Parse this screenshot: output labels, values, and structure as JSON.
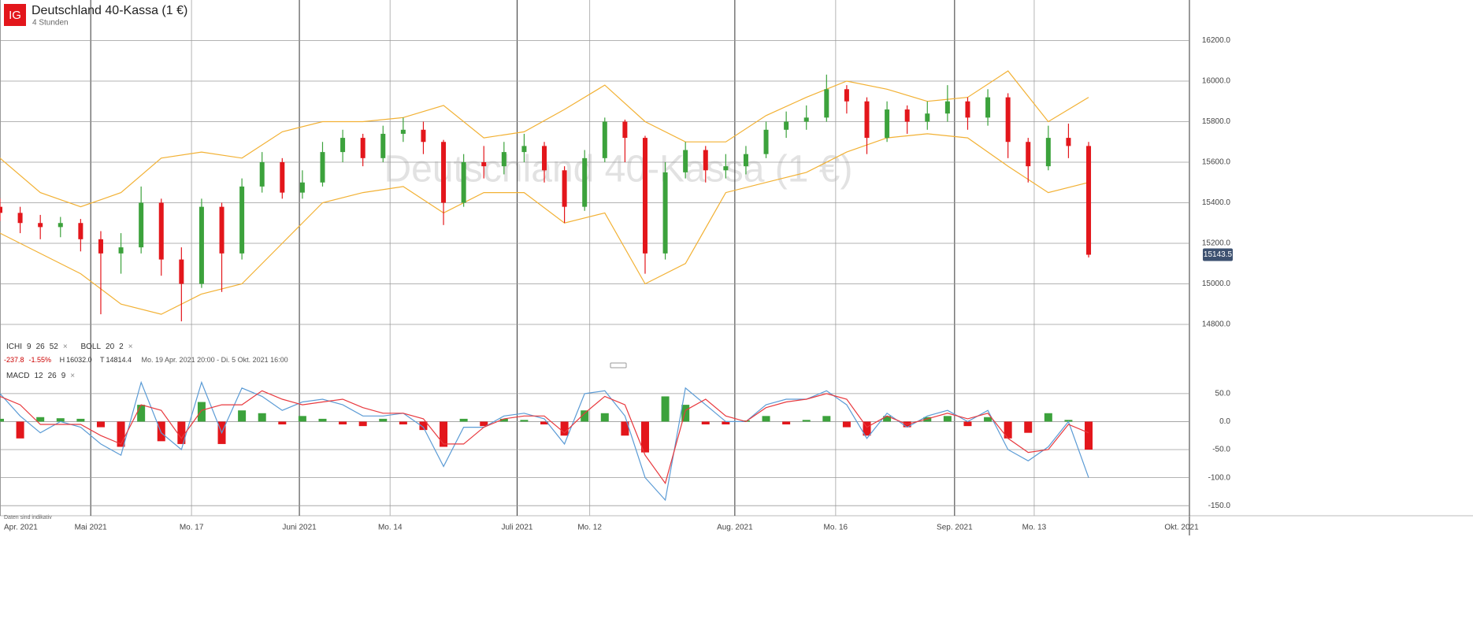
{
  "header": {
    "logo": "IG",
    "title": "Deutschland 40-Kassa (1 €)",
    "interval": "4 Stunden"
  },
  "legend": {
    "close_icon": "×",
    "ichimoku": {
      "label": "ICHI",
      "params": [
        9,
        26,
        52
      ]
    },
    "bollinger": {
      "label": "BOLL",
      "params": [
        20,
        2
      ]
    },
    "macd": {
      "label": "MACD",
      "params": [
        12,
        26,
        9
      ]
    }
  },
  "stats": {
    "change": "-237.8",
    "change_pct": "-1.55%",
    "high_label": "H",
    "high": "16032.0",
    "low_label": "T",
    "low": "14814.4",
    "range": "Mo. 19 Apr. 2021 20:00 - Di. 5 Okt. 2021 16:00"
  },
  "footnote": "Daten sind indikativ",
  "chart_data": [
    {
      "type": "candlestick",
      "x": [
        -9,
        -7,
        -5,
        -3,
        -1,
        1,
        3,
        5,
        7,
        9,
        11,
        13,
        15,
        17,
        19,
        21,
        23,
        25,
        27,
        29,
        31,
        33,
        35,
        37,
        39,
        41,
        43,
        45,
        47,
        49,
        51,
        53,
        55,
        57,
        59,
        61,
        63,
        65,
        67,
        69,
        71,
        73,
        75,
        77,
        79,
        81,
        83,
        85,
        87,
        89,
        91,
        93,
        95,
        97,
        99
      ],
      "open": [
        15380,
        15350,
        15300,
        15280,
        15300,
        15220,
        15150,
        15180,
        15400,
        15120,
        15000,
        15380,
        15150,
        15480,
        15600,
        15450,
        15500,
        15650,
        15720,
        15620,
        15740,
        15760,
        15700,
        15400,
        15600,
        15580,
        15650,
        15680,
        15560,
        15380,
        15620,
        15800,
        15720,
        15150,
        15550,
        15660,
        15560,
        15580,
        15640,
        15760,
        15800,
        15820,
        15960,
        15900,
        15720,
        15860,
        15800,
        15840,
        15900,
        15820,
        15920,
        15700,
        15580,
        15720,
        15680
      ],
      "high": [
        15420,
        15380,
        15340,
        15330,
        15320,
        15260,
        15250,
        15480,
        15420,
        15180,
        15420,
        15400,
        15520,
        15650,
        15620,
        15560,
        15700,
        15760,
        15740,
        15780,
        15820,
        15800,
        15710,
        15640,
        15680,
        15700,
        15740,
        15700,
        15580,
        15660,
        15820,
        15810,
        15730,
        15600,
        15700,
        15680,
        15640,
        15680,
        15800,
        15850,
        15880,
        16032,
        15980,
        15920,
        15900,
        15880,
        15900,
        15980,
        15920,
        15960,
        15940,
        15720,
        15780,
        15790,
        15700
      ],
      "low": [
        15310,
        15250,
        15220,
        15230,
        15160,
        14850,
        15050,
        15150,
        15040,
        14815,
        14980,
        14960,
        15120,
        15450,
        15420,
        15420,
        15480,
        15600,
        15580,
        15600,
        15700,
        15640,
        15290,
        15380,
        15520,
        15540,
        15600,
        15500,
        15300,
        15360,
        15600,
        15600,
        15050,
        15120,
        15520,
        15500,
        15520,
        15540,
        15620,
        15720,
        15760,
        15800,
        15840,
        15640,
        15700,
        15740,
        15760,
        15800,
        15760,
        15780,
        15620,
        15500,
        15560,
        15620,
        15130
      ],
      "close": [
        15350,
        15300,
        15280,
        15300,
        15220,
        15150,
        15180,
        15400,
        15120,
        15000,
        15380,
        15150,
        15480,
        15600,
        15450,
        15500,
        15650,
        15720,
        15620,
        15740,
        15760,
        15700,
        15400,
        15600,
        15580,
        15650,
        15680,
        15560,
        15380,
        15620,
        15800,
        15720,
        15150,
        15550,
        15660,
        15560,
        15580,
        15640,
        15760,
        15800,
        15820,
        15960,
        15900,
        15720,
        15860,
        15800,
        15840,
        15900,
        15820,
        15920,
        15700,
        15580,
        15720,
        15680,
        15143.5
      ],
      "up_color": "#3ca23c",
      "down_color": "#e3161b",
      "last_color": "#3d5170",
      "xlim": [
        -9,
        109
      ],
      "xticks": [
        {
          "value": -9,
          "label": "Apr. 2021"
        },
        {
          "value": 0,
          "label": "Mai 2021"
        },
        {
          "value": 10,
          "label": "Mo. 17"
        },
        {
          "value": 20.7,
          "label": "Juni 2021"
        },
        {
          "value": 29.7,
          "label": "Mo. 14"
        },
        {
          "value": 42.3,
          "label": "Juli 2021"
        },
        {
          "value": 49.5,
          "label": "Mo. 12"
        },
        {
          "value": 63.9,
          "label": "Aug. 2021"
        },
        {
          "value": 73.9,
          "label": "Mo. 16"
        },
        {
          "value": 85.7,
          "label": "Sep. 2021"
        },
        {
          "value": 93.6,
          "label": "Mo. 13"
        },
        {
          "value": 109,
          "label": "Okt. 2021"
        }
      ],
      "ylim": [
        14730,
        16400
      ],
      "yticks": [
        {
          "value": 14800,
          "label": "14800.0"
        },
        {
          "value": 15000,
          "label": "15000.0"
        },
        {
          "value": 15200,
          "label": "15200.0"
        },
        {
          "value": 15400,
          "label": "15400.0"
        },
        {
          "value": 15600,
          "label": "15600.0"
        },
        {
          "value": 15800,
          "label": "15800.0"
        },
        {
          "value": 16000,
          "label": "16000.0"
        },
        {
          "value": 16200,
          "label": "16200.0"
        }
      ],
      "bollinger": {
        "color": "#f2b134",
        "x": [
          -9,
          -5,
          -1,
          3,
          7,
          11,
          15,
          19,
          23,
          27,
          31,
          35,
          39,
          43,
          47,
          51,
          55,
          59,
          63,
          67,
          71,
          75,
          79,
          83,
          87,
          91,
          95,
          99
        ],
        "upper": [
          15620,
          15450,
          15380,
          15450,
          15620,
          15650,
          15620,
          15750,
          15800,
          15800,
          15820,
          15880,
          15720,
          15750,
          15860,
          15980,
          15800,
          15700,
          15700,
          15830,
          15920,
          16000,
          15960,
          15900,
          15920,
          16050,
          15800,
          15920
        ],
        "lower": [
          15250,
          15150,
          15050,
          14900,
          14850,
          14950,
          15000,
          15200,
          15400,
          15450,
          15480,
          15350,
          15450,
          15450,
          15300,
          15350,
          15000,
          15100,
          15450,
          15500,
          15550,
          15650,
          15720,
          15740,
          15720,
          15580,
          15450,
          15500
        ]
      }
    },
    {
      "type": "macd",
      "x": [
        -9,
        -7,
        -5,
        -3,
        -1,
        1,
        3,
        5,
        7,
        9,
        11,
        13,
        15,
        17,
        19,
        21,
        23,
        25,
        27,
        29,
        31,
        33,
        35,
        37,
        39,
        41,
        43,
        45,
        47,
        49,
        51,
        53,
        55,
        57,
        59,
        61,
        63,
        65,
        67,
        69,
        71,
        73,
        75,
        77,
        79,
        81,
        83,
        85,
        87,
        89,
        91,
        93,
        95,
        97,
        99
      ],
      "histogram": [
        5,
        -30,
        8,
        6,
        5,
        -10,
        -45,
        30,
        -35,
        -40,
        35,
        -40,
        20,
        15,
        -5,
        10,
        5,
        -5,
        -8,
        5,
        -5,
        -15,
        -45,
        5,
        -8,
        5,
        3,
        -5,
        -25,
        20,
        15,
        -25,
        -55,
        45,
        30,
        -5,
        -5,
        2,
        10,
        -5,
        3,
        10,
        -10,
        -25,
        10,
        -10,
        8,
        10,
        -8,
        8,
        -30,
        -20,
        15,
        3,
        -50
      ],
      "hist_up_color": "#3ca23c",
      "hist_down_color": "#e3161b",
      "macd": {
        "color": "#5b9bd5",
        "values": [
          50,
          10,
          -20,
          0,
          -10,
          -40,
          -60,
          70,
          -20,
          -50,
          70,
          -20,
          60,
          45,
          20,
          35,
          40,
          30,
          10,
          10,
          15,
          -10,
          -80,
          -10,
          -10,
          10,
          15,
          5,
          -40,
          50,
          55,
          10,
          -100,
          -140,
          60,
          30,
          0,
          0,
          30,
          40,
          40,
          55,
          30,
          -30,
          15,
          -10,
          10,
          20,
          0,
          20,
          -50,
          -70,
          -45,
          0,
          -100
        ]
      },
      "signal": {
        "color": "#e8383d",
        "values": [
          45,
          30,
          -5,
          -5,
          -5,
          -25,
          -40,
          30,
          20,
          -30,
          20,
          30,
          30,
          55,
          40,
          30,
          35,
          40,
          25,
          15,
          15,
          5,
          -40,
          -40,
          -10,
          5,
          10,
          10,
          -20,
          15,
          45,
          30,
          -60,
          -110,
          20,
          40,
          10,
          0,
          25,
          35,
          40,
          50,
          40,
          -10,
          10,
          -5,
          5,
          15,
          5,
          15,
          -30,
          -55,
          -50,
          -5,
          -20
        ]
      },
      "ylim": [
        -168,
        99
      ],
      "yticks": [
        {
          "value": 50,
          "label": "50.0"
        },
        {
          "value": 0,
          "label": "0.0"
        },
        {
          "value": -50,
          "label": "-50.0"
        },
        {
          "value": -100,
          "label": "-100.0"
        },
        {
          "value": -150,
          "label": "-150.0"
        }
      ]
    }
  ]
}
